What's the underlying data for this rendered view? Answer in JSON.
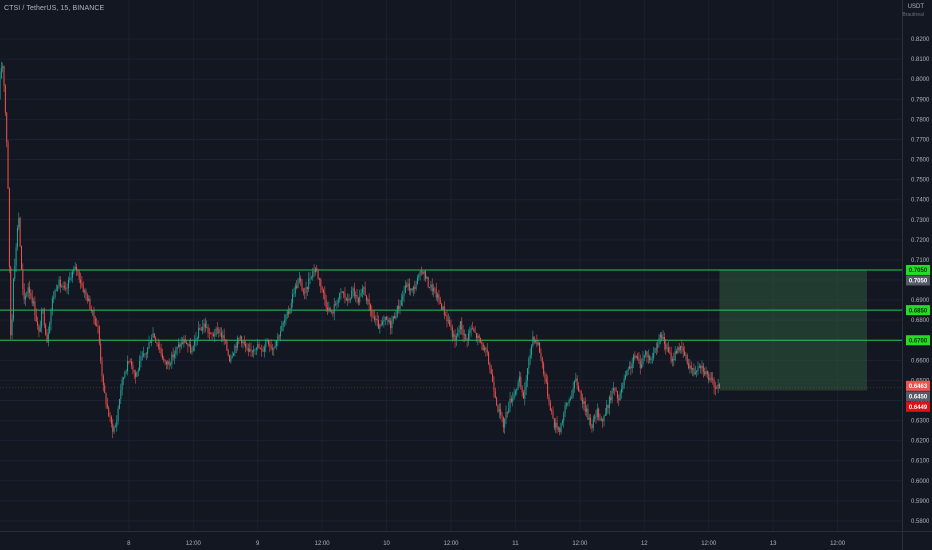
{
  "header": {
    "title": "CTSI / TetherUS, 15, BINANCE"
  },
  "price_axis": {
    "unit_label": "USDT",
    "unit_sublabel": "Brauttreal"
  },
  "colors": {
    "background": "#131722",
    "up_candle": "#26a69a",
    "down_candle": "#ef5350",
    "level_line": "#22c55e",
    "level_tag": "#22dd22",
    "zone_fill": "#2f5a3c",
    "price_tag_red": "#ef5350",
    "price_tag_gray": "#555a66",
    "price_tag_bright_red": "#e01010"
  },
  "chart_data": {
    "type": "candlestick",
    "symbol": "CTSI / TetherUS",
    "interval": "15",
    "exchange": "BINANCE",
    "y_range": [
      0.575,
      0.8285
    ],
    "x_range": [
      "2022-01-07T00:00",
      "2022-01-14T00:00"
    ],
    "y_ticks": [
      0.82,
      0.81,
      0.8,
      0.79,
      0.78,
      0.77,
      0.76,
      0.75,
      0.74,
      0.73,
      0.72,
      0.71,
      0.7,
      0.69,
      0.68,
      0.67,
      0.66,
      0.65,
      0.64,
      0.63,
      0.62,
      0.61,
      0.6,
      0.59,
      0.58
    ],
    "y_tick_labels": [
      "0.8200",
      "0.8100",
      "0.8000",
      "0.7900",
      "0.7800",
      "0.7700",
      "0.7600",
      "0.7500",
      "0.7400",
      "0.7300",
      "0.7200",
      "0.7100",
      "0.7000",
      "0.6900",
      "0.6800",
      "0.6700",
      "0.6600",
      "0.6500",
      "0.6400",
      "0.6300",
      "0.6200",
      "0.6100",
      "0.6000",
      "0.5900",
      "0.5800"
    ],
    "x_ticks": [
      {
        "t": "2022-01-08T00:00",
        "label": "8"
      },
      {
        "t": "2022-01-08T12:00",
        "label": "12:00"
      },
      {
        "t": "2022-01-09T00:00",
        "label": "9"
      },
      {
        "t": "2022-01-09T12:00",
        "label": "12:00"
      },
      {
        "t": "2022-01-10T00:00",
        "label": "10"
      },
      {
        "t": "2022-01-10T12:00",
        "label": "12:00"
      },
      {
        "t": "2022-01-11T00:00",
        "label": "11"
      },
      {
        "t": "2022-01-11T12:00",
        "label": "12:00"
      },
      {
        "t": "2022-01-12T00:00",
        "label": "12"
      },
      {
        "t": "2022-01-12T12:00",
        "label": "12:00"
      },
      {
        "t": "2022-01-13T00:00",
        "label": "13"
      },
      {
        "t": "2022-01-13T12:00",
        "label": "12:00"
      }
    ],
    "price_path": [
      [
        "2022-01-07T00:00",
        0.79
      ],
      [
        "2022-01-07T00:20",
        0.802
      ],
      [
        "2022-01-07T00:40",
        0.81
      ],
      [
        "2022-01-07T01:00",
        0.798
      ],
      [
        "2022-01-07T01:40",
        0.76
      ],
      [
        "2022-01-07T02:00",
        0.705
      ],
      [
        "2022-01-07T02:20",
        0.662
      ],
      [
        "2022-01-07T02:40",
        0.7
      ],
      [
        "2022-01-07T03:20",
        0.718
      ],
      [
        "2022-01-07T03:40",
        0.736
      ],
      [
        "2022-01-07T04:10",
        0.708
      ],
      [
        "2022-01-07T04:40",
        0.688
      ],
      [
        "2022-01-07T05:30",
        0.697
      ],
      [
        "2022-01-07T06:30",
        0.688
      ],
      [
        "2022-01-07T07:30",
        0.673
      ],
      [
        "2022-01-07T08:10",
        0.686
      ],
      [
        "2022-01-07T09:00",
        0.67
      ],
      [
        "2022-01-07T10:00",
        0.69
      ],
      [
        "2022-01-07T11:00",
        0.699
      ],
      [
        "2022-01-07T12:30",
        0.694
      ],
      [
        "2022-01-07T13:30",
        0.703
      ],
      [
        "2022-01-07T14:30",
        0.706
      ],
      [
        "2022-01-07T15:40",
        0.696
      ],
      [
        "2022-01-07T16:40",
        0.69
      ],
      [
        "2022-01-07T17:30",
        0.683
      ],
      [
        "2022-01-07T18:30",
        0.676
      ],
      [
        "2022-01-07T19:30",
        0.646
      ],
      [
        "2022-01-07T20:30",
        0.633
      ],
      [
        "2022-01-07T21:10",
        0.626
      ],
      [
        "2022-01-07T21:50",
        0.627
      ],
      [
        "2022-01-07T22:40",
        0.645
      ],
      [
        "2022-01-07T23:30",
        0.655
      ],
      [
        "2022-01-08T00:30",
        0.661
      ],
      [
        "2022-01-08T01:30",
        0.652
      ],
      [
        "2022-01-08T02:30",
        0.66
      ],
      [
        "2022-01-08T03:30",
        0.664
      ],
      [
        "2022-01-08T04:40",
        0.674
      ],
      [
        "2022-01-08T06:00",
        0.666
      ],
      [
        "2022-01-08T07:00",
        0.658
      ],
      [
        "2022-01-08T08:00",
        0.66
      ],
      [
        "2022-01-08T09:30",
        0.667
      ],
      [
        "2022-01-08T10:40",
        0.67
      ],
      [
        "2022-01-08T12:00",
        0.664
      ],
      [
        "2022-01-08T13:10",
        0.674
      ],
      [
        "2022-01-08T14:20",
        0.678
      ],
      [
        "2022-01-08T15:30",
        0.672
      ],
      [
        "2022-01-08T17:00",
        0.675
      ],
      [
        "2022-01-08T18:00",
        0.67
      ],
      [
        "2022-01-08T19:00",
        0.661
      ],
      [
        "2022-01-08T20:00",
        0.667
      ],
      [
        "2022-01-08T21:00",
        0.672
      ],
      [
        "2022-01-08T22:30",
        0.663
      ],
      [
        "2022-01-09T00:00",
        0.668
      ],
      [
        "2022-01-09T01:00",
        0.664
      ],
      [
        "2022-01-09T02:00",
        0.671
      ],
      [
        "2022-01-09T03:00",
        0.666
      ],
      [
        "2022-01-09T04:00",
        0.672
      ],
      [
        "2022-01-09T05:00",
        0.678
      ],
      [
        "2022-01-09T06:00",
        0.684
      ],
      [
        "2022-01-09T07:00",
        0.695
      ],
      [
        "2022-01-09T08:00",
        0.7
      ],
      [
        "2022-01-09T09:00",
        0.692
      ],
      [
        "2022-01-09T10:00",
        0.702
      ],
      [
        "2022-01-09T11:00",
        0.706
      ],
      [
        "2022-01-09T12:00",
        0.698
      ],
      [
        "2022-01-09T13:00",
        0.688
      ],
      [
        "2022-01-09T14:00",
        0.683
      ],
      [
        "2022-01-09T15:00",
        0.69
      ],
      [
        "2022-01-09T16:00",
        0.694
      ],
      [
        "2022-01-09T17:00",
        0.689
      ],
      [
        "2022-01-09T18:00",
        0.695
      ],
      [
        "2022-01-09T19:00",
        0.688
      ],
      [
        "2022-01-09T20:00",
        0.696
      ],
      [
        "2022-01-09T21:00",
        0.686
      ],
      [
        "2022-01-09T22:00",
        0.68
      ],
      [
        "2022-01-09T23:00",
        0.676
      ],
      [
        "2022-01-10T00:00",
        0.68
      ],
      [
        "2022-01-10T01:00",
        0.678
      ],
      [
        "2022-01-10T02:00",
        0.684
      ],
      [
        "2022-01-10T03:00",
        0.69
      ],
      [
        "2022-01-10T04:00",
        0.698
      ],
      [
        "2022-01-10T05:00",
        0.694
      ],
      [
        "2022-01-10T06:00",
        0.7
      ],
      [
        "2022-01-10T07:00",
        0.705
      ],
      [
        "2022-01-10T08:00",
        0.698
      ],
      [
        "2022-01-10T09:00",
        0.695
      ],
      [
        "2022-01-10T10:00",
        0.69
      ],
      [
        "2022-01-10T11:00",
        0.684
      ],
      [
        "2022-01-10T12:00",
        0.678
      ],
      [
        "2022-01-10T13:00",
        0.669
      ],
      [
        "2022-01-10T14:00",
        0.678
      ],
      [
        "2022-01-10T15:00",
        0.67
      ],
      [
        "2022-01-10T16:00",
        0.676
      ],
      [
        "2022-01-10T17:00",
        0.672
      ],
      [
        "2022-01-10T18:00",
        0.668
      ],
      [
        "2022-01-10T19:00",
        0.662
      ],
      [
        "2022-01-10T20:00",
        0.65
      ],
      [
        "2022-01-10T21:00",
        0.636
      ],
      [
        "2022-01-10T22:00",
        0.628
      ],
      [
        "2022-01-10T23:00",
        0.638
      ],
      [
        "2022-01-11T00:00",
        0.644
      ],
      [
        "2022-01-11T01:00",
        0.65
      ],
      [
        "2022-01-11T01:40",
        0.64
      ],
      [
        "2022-01-11T02:30",
        0.655
      ],
      [
        "2022-01-11T03:30",
        0.672
      ],
      [
        "2022-01-11T04:30",
        0.668
      ],
      [
        "2022-01-11T05:30",
        0.655
      ],
      [
        "2022-01-11T06:30",
        0.64
      ],
      [
        "2022-01-11T07:30",
        0.628
      ],
      [
        "2022-01-11T08:30",
        0.626
      ],
      [
        "2022-01-11T09:30",
        0.636
      ],
      [
        "2022-01-11T10:30",
        0.642
      ],
      [
        "2022-01-11T11:30",
        0.65
      ],
      [
        "2022-01-11T12:30",
        0.642
      ],
      [
        "2022-01-11T13:30",
        0.634
      ],
      [
        "2022-01-11T14:30",
        0.628
      ],
      [
        "2022-01-11T15:30",
        0.634
      ],
      [
        "2022-01-11T16:30",
        0.63
      ],
      [
        "2022-01-11T17:30",
        0.638
      ],
      [
        "2022-01-11T18:30",
        0.646
      ],
      [
        "2022-01-11T19:30",
        0.64
      ],
      [
        "2022-01-11T20:30",
        0.65
      ],
      [
        "2022-01-11T21:30",
        0.656
      ],
      [
        "2022-01-11T22:30",
        0.662
      ],
      [
        "2022-01-11T23:30",
        0.658
      ],
      [
        "2022-01-12T00:30",
        0.664
      ],
      [
        "2022-01-12T01:30",
        0.66
      ],
      [
        "2022-01-12T02:30",
        0.668
      ],
      [
        "2022-01-12T03:30",
        0.672
      ],
      [
        "2022-01-12T04:30",
        0.665
      ],
      [
        "2022-01-12T05:30",
        0.66
      ],
      [
        "2022-01-12T06:30",
        0.667
      ],
      [
        "2022-01-12T07:30",
        0.664
      ],
      [
        "2022-01-12T08:30",
        0.658
      ],
      [
        "2022-01-12T09:30",
        0.654
      ],
      [
        "2022-01-12T10:30",
        0.659
      ],
      [
        "2022-01-12T11:30",
        0.655
      ],
      [
        "2022-01-12T12:30",
        0.65
      ],
      [
        "2022-01-12T13:15",
        0.648
      ],
      [
        "2022-01-12T14:00",
        0.6463
      ]
    ],
    "horizontal_levels": [
      {
        "price": 0.705,
        "tag": "0.7050"
      },
      {
        "price": 0.685,
        "tag": "0.6850"
      },
      {
        "price": 0.67,
        "tag": "0.6700"
      }
    ],
    "zone": {
      "price_top": 0.705,
      "price_bottom": 0.645,
      "t_start": "2022-01-12T14:00",
      "t_end": "2022-01-14T00:00"
    },
    "price_tags": [
      {
        "price": 0.705,
        "label": "0.7050",
        "style": "gray"
      },
      {
        "price": 0.6463,
        "label": "0.6463",
        "style": "red"
      },
      {
        "price": 0.645,
        "label": "0.6450",
        "style": "gray"
      },
      {
        "price": 0.6449,
        "label": "0.6449",
        "style": "bright_red"
      }
    ]
  }
}
